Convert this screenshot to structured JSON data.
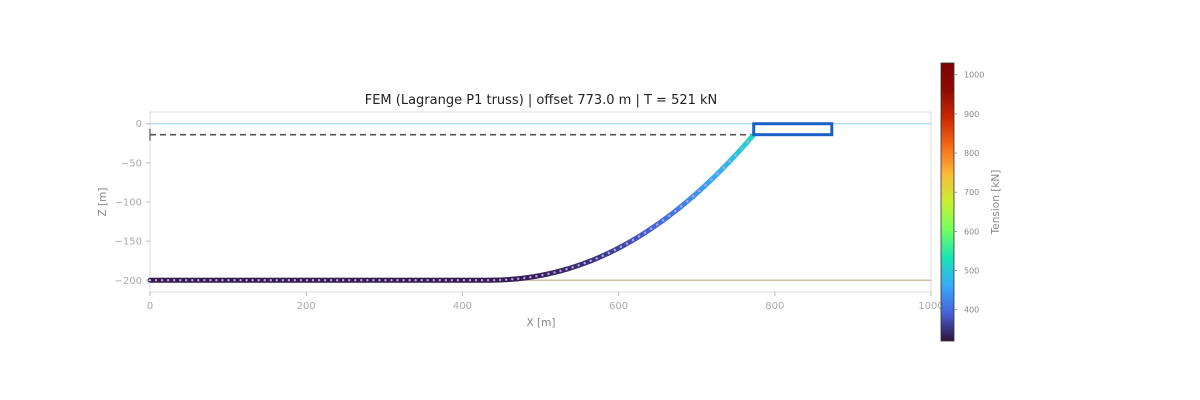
{
  "chart_data": {
    "type": "line",
    "title": "FEM (Lagrange P1 truss)  |  offset 773.0 m  |  T = 521 kN",
    "xlabel": "X [m]",
    "ylabel": "Z [m]",
    "xlim": [
      0,
      1000
    ],
    "ylim": [
      -215,
      15
    ],
    "x_ticks": [
      "0",
      "200",
      "400",
      "600",
      "800",
      "1000"
    ],
    "y_ticks": [
      "0",
      "−50",
      "−100",
      "−150",
      "−200"
    ],
    "grid": false,
    "water_surface_z": 0,
    "seabed_z": -200,
    "fairlead": {
      "x": 773,
      "z": -14
    },
    "anchor": {
      "x": 0,
      "z": -14
    },
    "vessel": {
      "x0": 773,
      "x1": 873,
      "z_top": 0,
      "z_bottom": -14
    },
    "touchdown_x": 430,
    "line_tension_range_kN": [
      330,
      521
    ],
    "colorbar": {
      "label": "Tension [kN]",
      "range": [
        320,
        1030
      ],
      "ticks": [
        "400",
        "500",
        "600",
        "700",
        "800",
        "900",
        "1000"
      ],
      "colormap": "turbo"
    },
    "colors": {
      "vessel": "#1a5fc4",
      "water_line": "#a8d8f0",
      "seabed_line": "#cdbfa8",
      "reference_dash": "#555555",
      "node_marker": "#c8a0e0"
    }
  }
}
